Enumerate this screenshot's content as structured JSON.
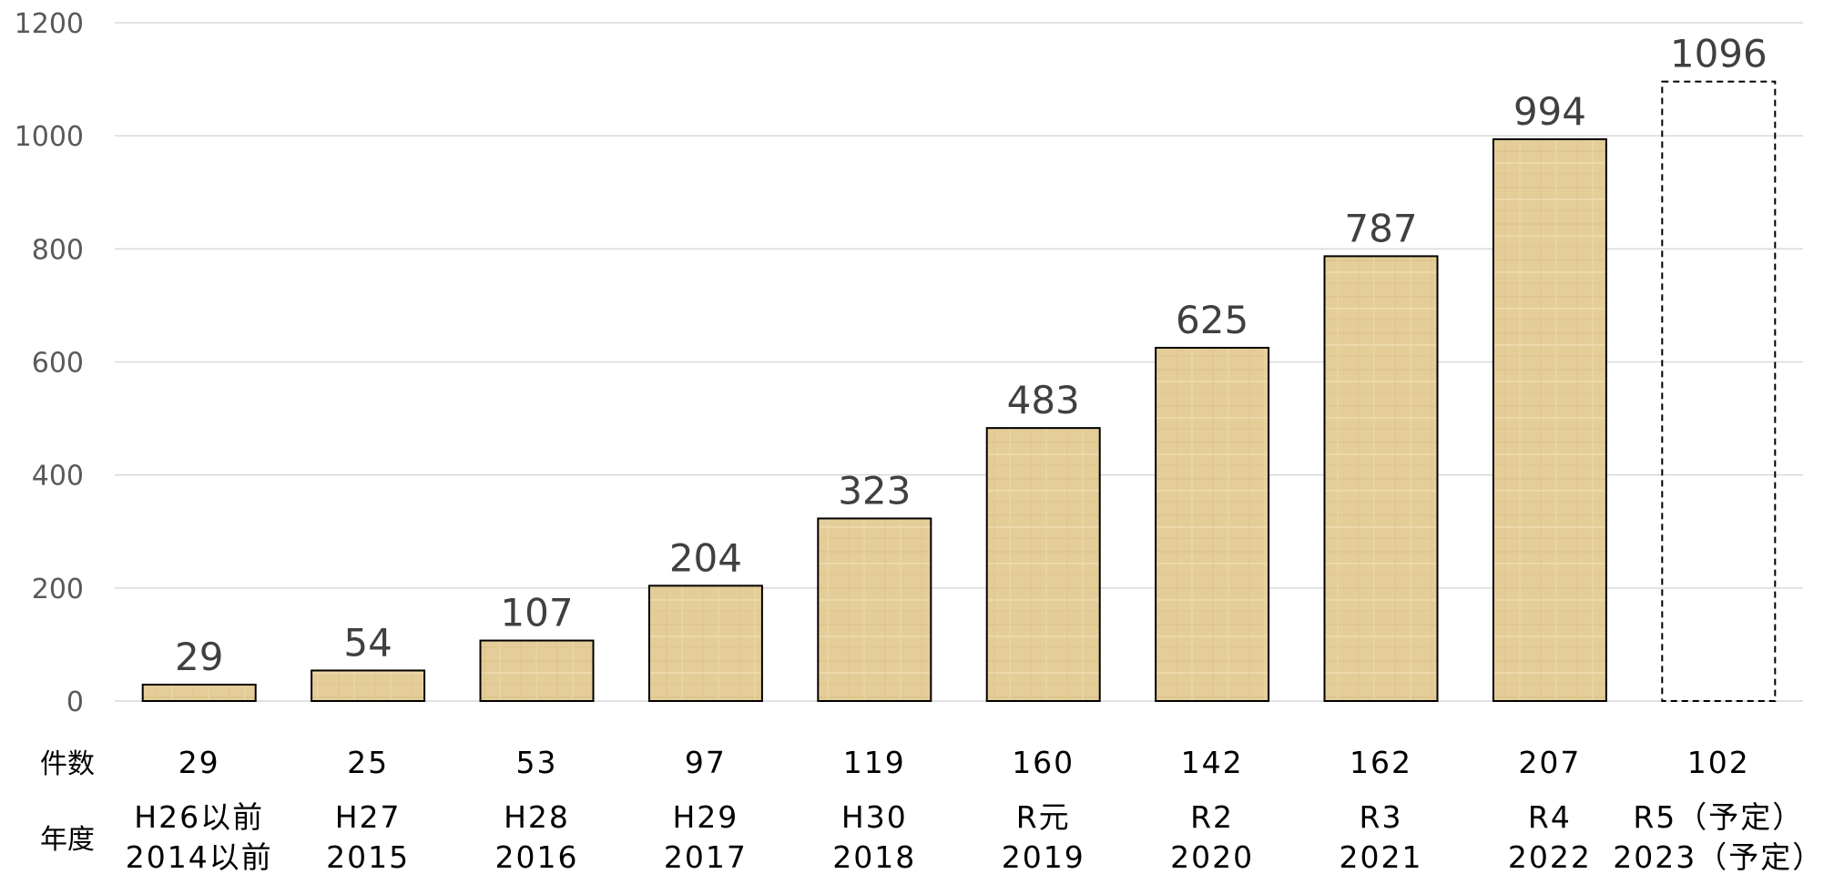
{
  "chart_data": {
    "type": "bar",
    "categories": [
      "H26以前 2014以前",
      "H27 2015",
      "H28 2016",
      "H29 2017",
      "H30 2018",
      "R元 2019",
      "R2 2020",
      "R3 2021",
      "R4 2022",
      "R5（予定） 2023（予定）"
    ],
    "values": [
      29,
      54,
      107,
      204,
      323,
      483,
      625,
      787,
      994,
      1096
    ],
    "ylim": [
      0,
      1200
    ],
    "yticks": [
      0,
      200,
      400,
      600,
      800,
      1000,
      1200
    ],
    "grid": true,
    "projected_last": true,
    "colors": {
      "bar": "#e4cd98",
      "bar_border": "#000000",
      "grid": "#d9d9d9"
    }
  },
  "table": {
    "count_header": "件数",
    "year_header": "年度",
    "counts": [
      "29",
      "25",
      "53",
      "97",
      "119",
      "160",
      "142",
      "162",
      "207",
      "102"
    ],
    "era_labels": [
      "H26以前",
      "H27",
      "H28",
      "H29",
      "H30",
      "R元",
      "R2",
      "R3",
      "R4",
      "R5（予定）"
    ],
    "year_labels": [
      "2014以前",
      "2015",
      "2016",
      "2017",
      "2018",
      "2019",
      "2020",
      "2021",
      "2022",
      "2023（予定）"
    ]
  }
}
